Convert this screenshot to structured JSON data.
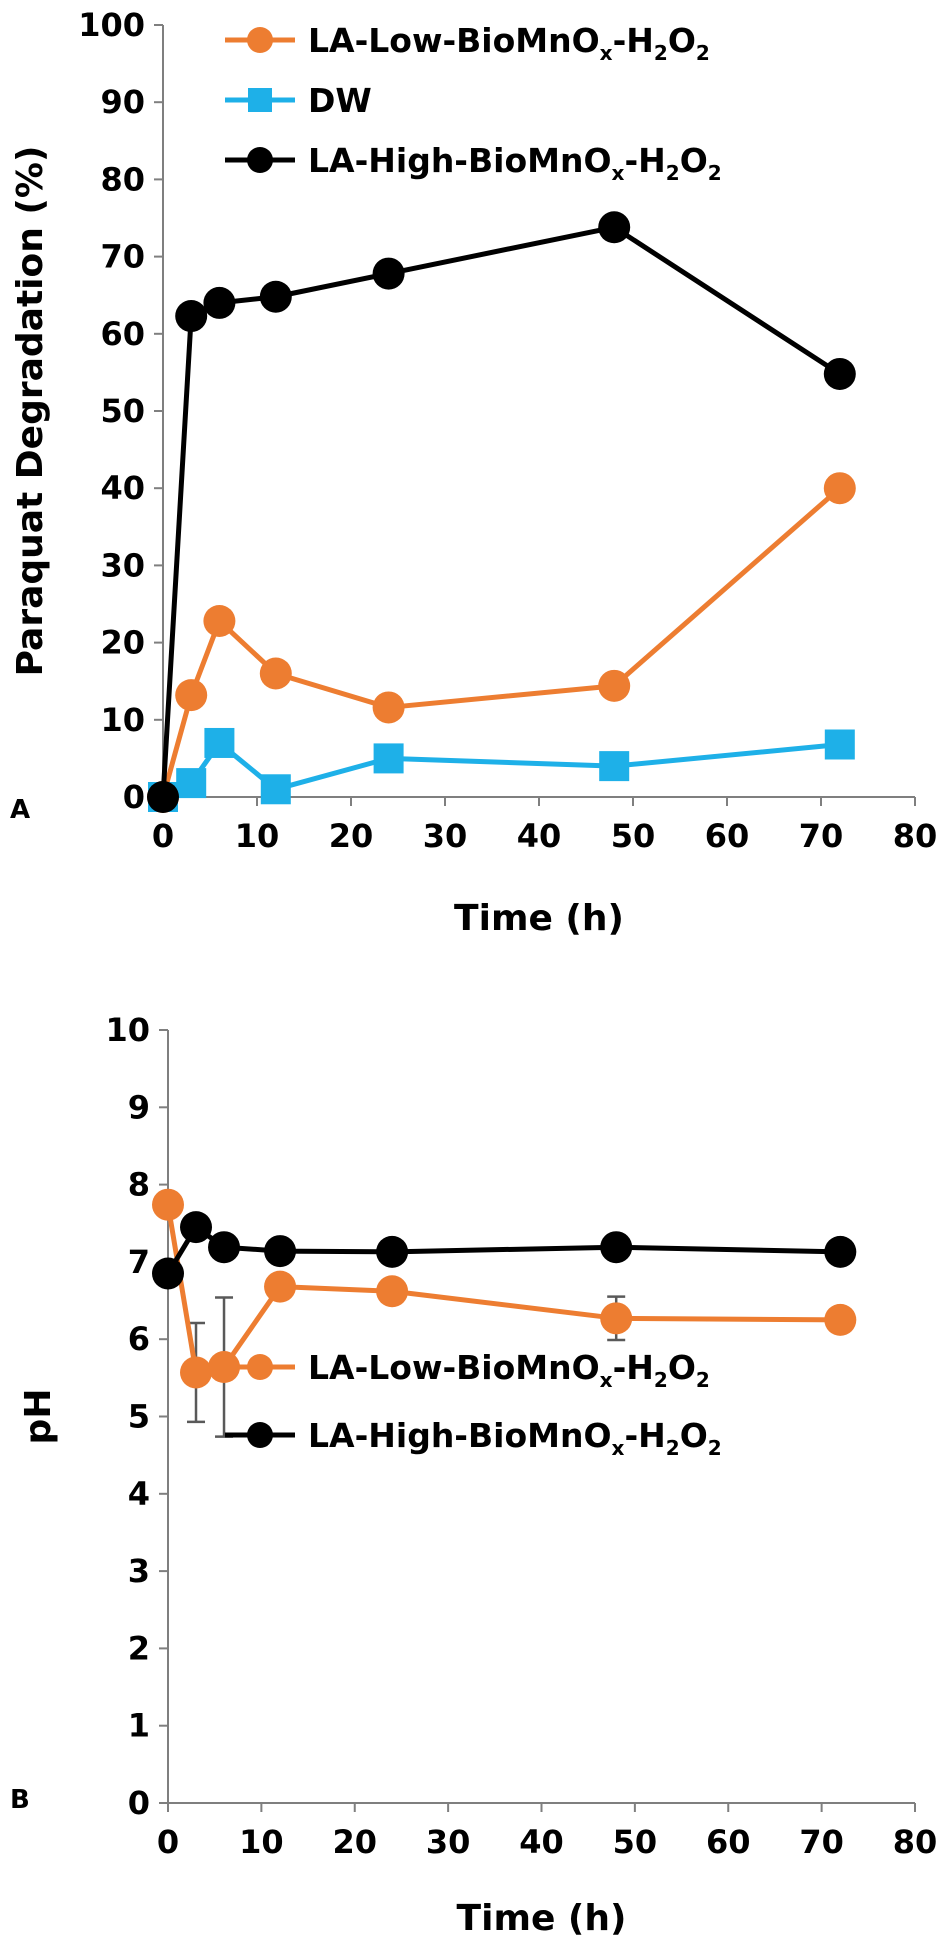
{
  "chart_data": [
    {
      "panel_label": "A",
      "type": "line",
      "xlabel": "Time (h)",
      "ylabel": "Paraquat Degradation (%)",
      "xlim": [
        0,
        80
      ],
      "ylim": [
        0,
        100
      ],
      "xticks": [
        "0",
        "10",
        "20",
        "30",
        "40",
        "50",
        "60",
        "70",
        "80"
      ],
      "yticks": [
        "0",
        "10",
        "20",
        "30",
        "40",
        "50",
        "60",
        "70",
        "80",
        "90",
        "100"
      ],
      "grid": false,
      "legend_position": "top",
      "series": [
        {
          "name": "LA-Low-BioMnOx-H2O2",
          "legend_parts": [
            "LA-Low-BioMnO",
            "x",
            "-H",
            "2",
            "O",
            "2"
          ],
          "color": "#ED7D31",
          "marker": "circle",
          "x": [
            0,
            3,
            6,
            12,
            24,
            48,
            72
          ],
          "y": [
            0,
            13.2,
            22.8,
            16.0,
            11.6,
            14.4,
            40.0
          ]
        },
        {
          "name": "DW",
          "legend_parts": [
            "DW"
          ],
          "color": "#1EB0E8",
          "marker": "square",
          "x": [
            0,
            3,
            6,
            12,
            24,
            48,
            72
          ],
          "y": [
            0,
            1.8,
            7.0,
            1.0,
            5.0,
            4.0,
            6.8
          ]
        },
        {
          "name": "LA-High-BioMnOx-H2O2",
          "legend_parts": [
            "LA-High-BioMnO",
            "x",
            "-H",
            "2",
            "O",
            "2"
          ],
          "color": "#000000",
          "marker": "circle",
          "x": [
            0,
            3,
            6,
            12,
            24,
            48,
            72
          ],
          "y": [
            0,
            62.3,
            64.0,
            64.8,
            67.8,
            73.8,
            54.8
          ]
        }
      ]
    },
    {
      "panel_label": "B",
      "type": "line",
      "xlabel": "Time (h)",
      "ylabel": "pH",
      "xlim": [
        0,
        80
      ],
      "ylim": [
        0,
        10
      ],
      "xticks": [
        "0",
        "10",
        "20",
        "30",
        "40",
        "50",
        "60",
        "70",
        "80"
      ],
      "yticks": [
        "0",
        "1",
        "2",
        "3",
        "4",
        "5",
        "6",
        "7",
        "8",
        "9",
        "10"
      ],
      "grid": false,
      "legend_position": "middle",
      "series": [
        {
          "name": "LA-Low-BioMnOx-H2O2",
          "legend_parts": [
            "LA-Low-BioMnO",
            "x",
            "-H",
            "2",
            "O",
            "2"
          ],
          "color": "#ED7D31",
          "marker": "circle",
          "x": [
            0,
            3,
            6,
            12,
            24,
            48,
            72
          ],
          "y": [
            7.74,
            5.57,
            5.64,
            6.68,
            6.62,
            6.27,
            6.25
          ],
          "error": [
            0,
            0.64,
            0.9,
            0,
            0,
            0.28,
            0
          ]
        },
        {
          "name": "LA-High-BioMnOx-H2O2",
          "legend_parts": [
            "LA-High-BioMnO",
            "x",
            "-H",
            "2",
            "O",
            "2"
          ],
          "color": "#000000",
          "marker": "circle",
          "x": [
            0,
            3,
            6,
            12,
            24,
            48,
            72
          ],
          "y": [
            6.85,
            7.45,
            7.19,
            7.14,
            7.13,
            7.19,
            7.13
          ]
        }
      ]
    }
  ]
}
